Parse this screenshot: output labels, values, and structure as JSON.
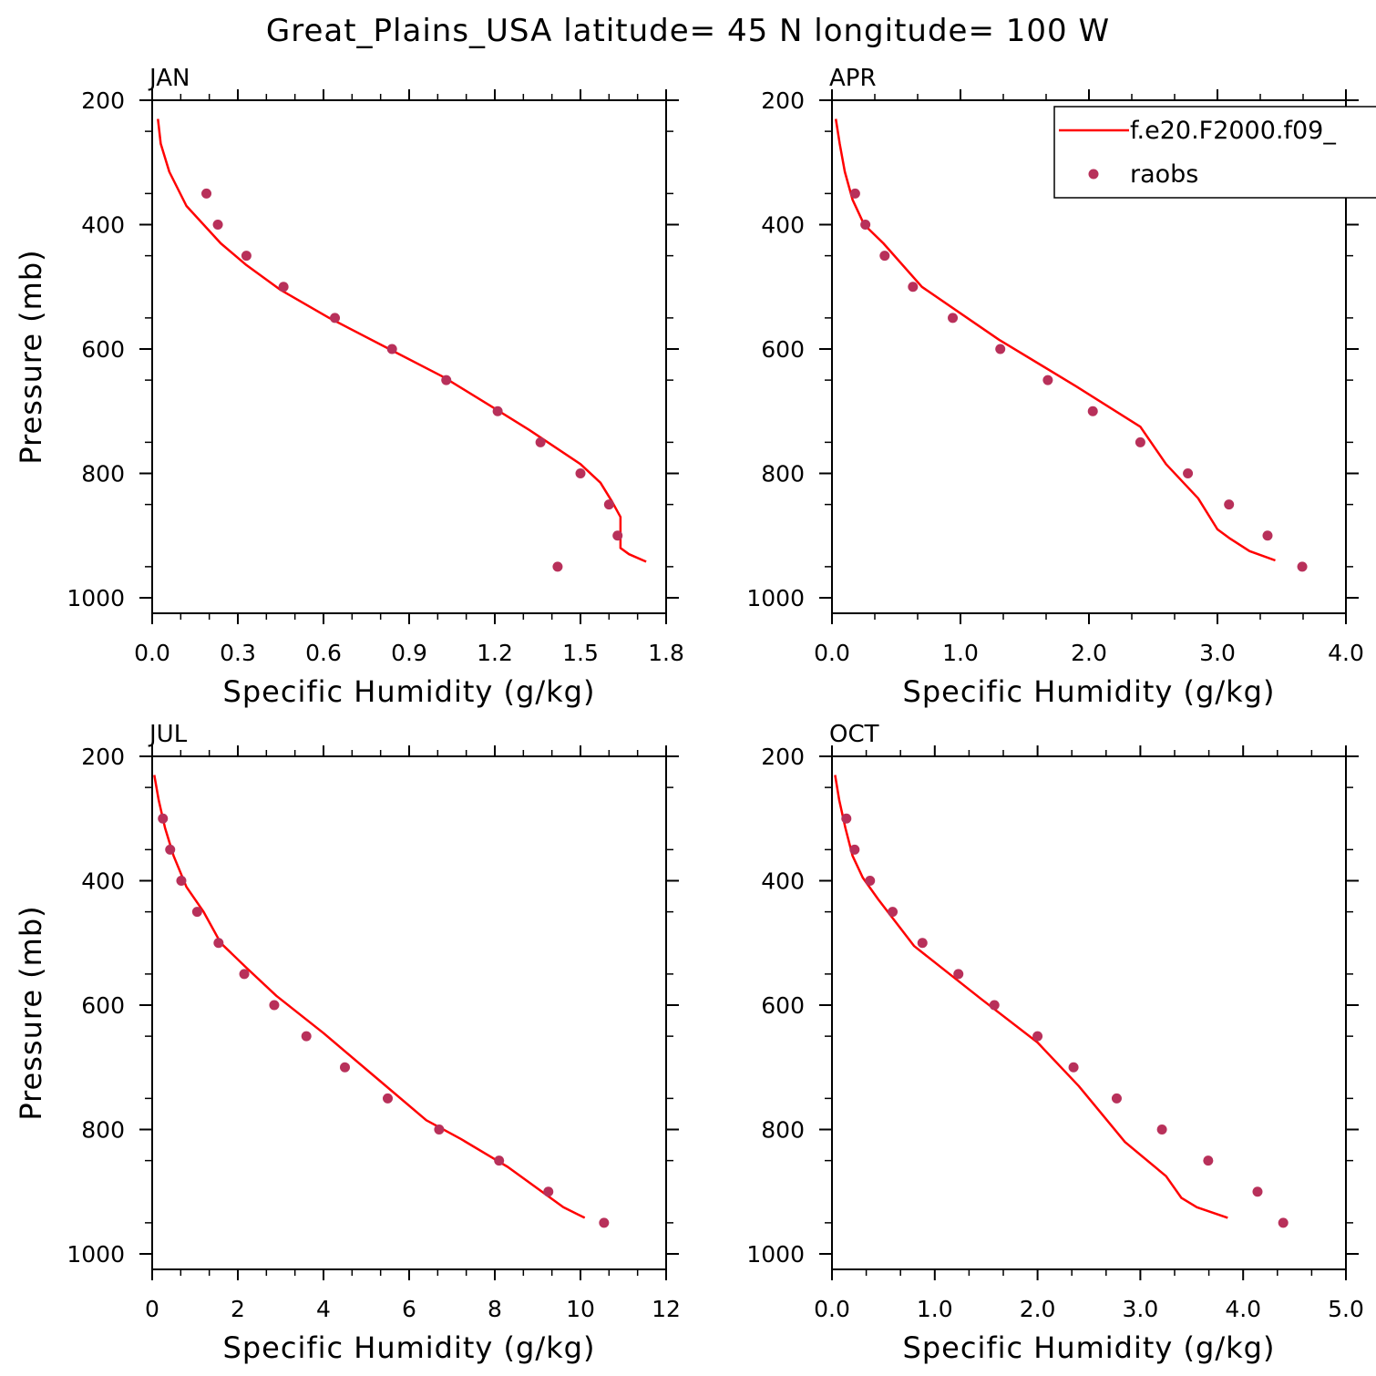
{
  "figure": {
    "title": "Great_Plains_USA  latitude= 45 N longitude= 100 W"
  },
  "legend": {
    "model_label": "f.e20.F2000.f09_",
    "obs_label": "raobs"
  },
  "colors": {
    "model_line": "#ff0000",
    "obs_marker": "#b8305a",
    "axis": "#000000"
  },
  "chart_data": [
    {
      "type": "line",
      "panel": "JAN",
      "xlabel": "Specific Humidity (g/kg)",
      "ylabel": "Pressure (mb)",
      "xlim": [
        0,
        1.8
      ],
      "ylim": [
        1000,
        200
      ],
      "xticks": [
        "0.0",
        "0.3",
        "0.6",
        "0.9",
        "1.2",
        "1.5",
        "1.8"
      ],
      "xtick_values": [
        0,
        0.3,
        0.6,
        0.9,
        1.2,
        1.5,
        1.8
      ],
      "yticks": [
        "200",
        "400",
        "600",
        "800",
        "1000"
      ],
      "ytick_values": [
        200,
        400,
        600,
        800,
        1000
      ],
      "y_inverted": true,
      "series": [
        {
          "name": "f.e20.F2000.f09_",
          "style": "line",
          "x": [
            0.02,
            0.03,
            0.06,
            0.12,
            0.24,
            0.33,
            0.45,
            0.62,
            0.83,
            1.02,
            1.18,
            1.32,
            1.5,
            1.57,
            1.61,
            1.64,
            1.64,
            1.67,
            1.73
          ],
          "y": [
            230,
            270,
            315,
            370,
            430,
            465,
            505,
            550,
            600,
            645,
            690,
            730,
            785,
            815,
            845,
            870,
            920,
            930,
            942
          ]
        },
        {
          "name": "raobs",
          "style": "scatter",
          "x": [
            0.19,
            0.23,
            0.33,
            0.46,
            0.64,
            0.84,
            1.03,
            1.21,
            1.36,
            1.5,
            1.6,
            1.63,
            1.42
          ],
          "y": [
            350,
            400,
            450,
            500,
            550,
            600,
            650,
            700,
            750,
            800,
            850,
            900,
            950
          ]
        }
      ]
    },
    {
      "type": "line",
      "panel": "APR",
      "xlabel": "Specific Humidity (g/kg)",
      "ylabel": "",
      "xlim": [
        0,
        4.0
      ],
      "ylim": [
        1000,
        200
      ],
      "xticks": [
        "0.0",
        "1.0",
        "2.0",
        "3.0",
        "4.0"
      ],
      "xtick_values": [
        0,
        1,
        2,
        3,
        4
      ],
      "yticks": [
        "200",
        "400",
        "600",
        "800",
        "1000"
      ],
      "ytick_values": [
        200,
        400,
        600,
        800,
        1000
      ],
      "y_inverted": true,
      "series": [
        {
          "name": "f.e20.F2000.f09_",
          "style": "line",
          "x": [
            0.03,
            0.06,
            0.1,
            0.16,
            0.25,
            0.4,
            0.7,
            1.3,
            1.9,
            2.4,
            2.6,
            2.85,
            3.0,
            3.1,
            3.25,
            3.45
          ],
          "y": [
            230,
            270,
            315,
            360,
            400,
            430,
            500,
            585,
            660,
            725,
            785,
            840,
            890,
            905,
            925,
            940
          ]
        },
        {
          "name": "raobs",
          "style": "scatter",
          "x": [
            0.18,
            0.26,
            0.41,
            0.63,
            0.94,
            1.31,
            1.68,
            2.03,
            2.4,
            2.77,
            3.09,
            3.39,
            3.66
          ],
          "y": [
            350,
            400,
            450,
            500,
            550,
            600,
            650,
            700,
            750,
            800,
            850,
            900,
            950
          ]
        }
      ]
    },
    {
      "type": "line",
      "panel": "JUL",
      "xlabel": "Specific Humidity (g/kg)",
      "ylabel": "Pressure (mb)",
      "xlim": [
        0,
        12
      ],
      "ylim": [
        1000,
        200
      ],
      "xticks": [
        "0",
        "2",
        "4",
        "6",
        "8",
        "10",
        "12"
      ],
      "xtick_values": [
        0,
        2,
        4,
        6,
        8,
        10,
        12
      ],
      "yticks": [
        "200",
        "400",
        "600",
        "800",
        "1000"
      ],
      "ytick_values": [
        200,
        400,
        600,
        800,
        1000
      ],
      "y_inverted": true,
      "series": [
        {
          "name": "f.e20.F2000.f09_",
          "style": "line",
          "x": [
            0.05,
            0.15,
            0.3,
            0.5,
            0.8,
            1.2,
            1.6,
            2.2,
            2.9,
            4.0,
            5.2,
            6.4,
            7.2,
            8.3,
            9.6,
            10.1
          ],
          "y": [
            230,
            270,
            315,
            360,
            410,
            450,
            500,
            540,
            585,
            645,
            715,
            785,
            815,
            860,
            925,
            942
          ]
        },
        {
          "name": "raobs",
          "style": "scatter",
          "x": [
            0.25,
            0.42,
            0.68,
            1.05,
            1.55,
            2.15,
            2.85,
            3.6,
            4.5,
            5.5,
            6.7,
            8.1,
            9.25,
            10.55
          ],
          "y": [
            300,
            350,
            400,
            450,
            500,
            550,
            600,
            650,
            700,
            750,
            800,
            850,
            900,
            950
          ]
        }
      ]
    },
    {
      "type": "line",
      "panel": "OCT",
      "xlabel": "Specific Humidity (g/kg)",
      "ylabel": "",
      "xlim": [
        0,
        5.0
      ],
      "ylim": [
        1000,
        200
      ],
      "xticks": [
        "0.0",
        "1.0",
        "2.0",
        "3.0",
        "4.0",
        "5.0"
      ],
      "xtick_values": [
        0,
        1,
        2,
        3,
        4,
        5
      ],
      "yticks": [
        "200",
        "400",
        "600",
        "800",
        "1000"
      ],
      "ytick_values": [
        200,
        400,
        600,
        800,
        1000
      ],
      "y_inverted": true,
      "series": [
        {
          "name": "f.e20.F2000.f09_",
          "style": "line",
          "x": [
            0.03,
            0.07,
            0.13,
            0.2,
            0.3,
            0.45,
            0.8,
            1.45,
            2.0,
            2.4,
            2.65,
            2.85,
            3.25,
            3.4,
            3.55,
            3.85
          ],
          "y": [
            230,
            270,
            315,
            360,
            395,
            430,
            505,
            590,
            660,
            730,
            780,
            820,
            875,
            910,
            925,
            942
          ]
        },
        {
          "name": "raobs",
          "style": "scatter",
          "x": [
            0.14,
            0.22,
            0.37,
            0.59,
            0.88,
            1.23,
            1.58,
            2.0,
            2.35,
            2.77,
            3.21,
            3.66,
            4.14,
            4.39
          ],
          "y": [
            300,
            350,
            400,
            450,
            500,
            550,
            600,
            650,
            700,
            750,
            800,
            850,
            900,
            950
          ]
        }
      ]
    }
  ]
}
